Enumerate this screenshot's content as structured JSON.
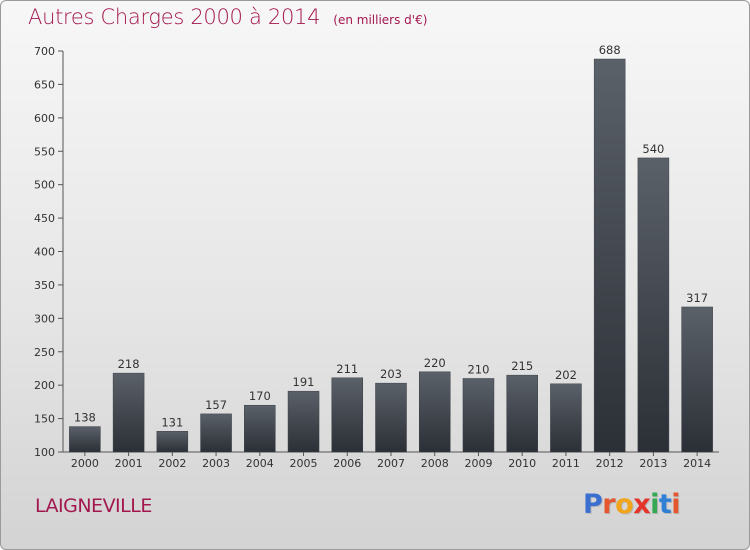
{
  "header": {
    "title": "Autres Charges 2000 à 2014",
    "unit_note": "(en milliers d'€)"
  },
  "footer": {
    "commune": "LAIGNEVILLE",
    "brand": "Proxiti"
  },
  "colors": {
    "accent": "#a3174f",
    "bar_top": "#5b6169",
    "bar_bottom": "#2b2f36"
  },
  "logo_colors": [
    "#3a6fd0",
    "#e4572e",
    "#f0a51a",
    "#e63329",
    "#36a852",
    "#2f7fd6",
    "#e4572e"
  ],
  "chart_data": {
    "type": "bar",
    "title": "Autres Charges 2000 à 2014",
    "subtitle": "(en milliers d'€)",
    "categories": [
      "2000",
      "2001",
      "2002",
      "2003",
      "2004",
      "2005",
      "2006",
      "2007",
      "2008",
      "2009",
      "2010",
      "2011",
      "2012",
      "2013",
      "2014"
    ],
    "values": [
      138,
      218,
      131,
      157,
      170,
      191,
      211,
      203,
      220,
      210,
      215,
      202,
      688,
      540,
      317
    ],
    "ylim": [
      100,
      700
    ],
    "yticks": [
      100,
      150,
      200,
      250,
      300,
      350,
      400,
      450,
      500,
      550,
      600,
      650,
      700
    ],
    "grid": false,
    "legend": "none"
  }
}
